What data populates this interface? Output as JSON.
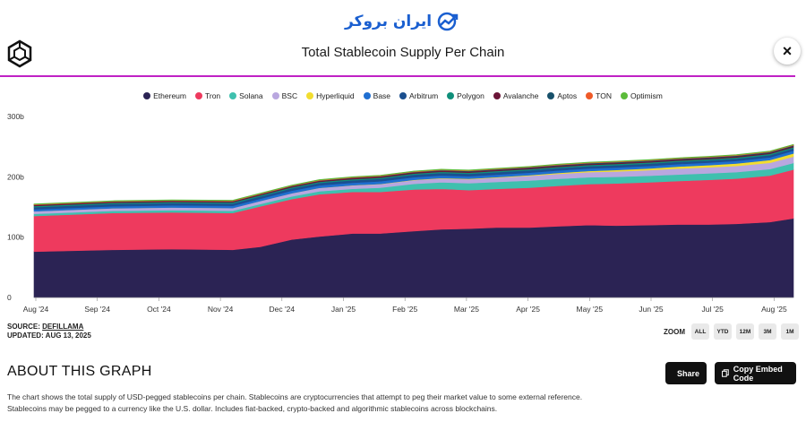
{
  "watermark": {
    "text": "ایران بروکر"
  },
  "header": {
    "title": "Total Stablecoin Supply Per Chain",
    "close_label": "×"
  },
  "source": {
    "label": "SOURCE:",
    "name": "DEFILLAMA",
    "updated": "UPDATED: AUG 13, 2025"
  },
  "zoom": {
    "label": "ZOOM",
    "options": [
      "ALL",
      "YTD",
      "12M",
      "3M",
      "1M"
    ]
  },
  "about": {
    "heading": "ABOUT THIS GRAPH",
    "line1": "The chart shows the total supply of USD-pegged stablecoins per chain. Stablecoins are cryptocurrencies that attempt to peg their market value to some external reference.",
    "line2": "Stablecoins may be pegged to a currency like the U.S. dollar. Includes fiat-backed, crypto-backed and algorithmic stablecoins across blockchains."
  },
  "buttons": {
    "share": "Share",
    "embed": "Copy Embed Code"
  },
  "colors": {
    "accent_rule": "#c021c5",
    "button_bg": "#111111",
    "watermark": "#1a5fd0"
  },
  "chart_data": {
    "type": "area",
    "stacked": true,
    "grid": false,
    "legend_position": "top-center",
    "title": "Total Stablecoin Supply Per Chain",
    "ylim": [
      0,
      300
    ],
    "y_ticks": [
      "0",
      "100b",
      "200b",
      "300b"
    ],
    "y_tick_values": [
      0,
      100,
      200,
      300
    ],
    "x_ticks": [
      "Aug '24",
      "Sep '24",
      "Oct '24",
      "Nov '24",
      "Dec '24",
      "Jan '25",
      "Feb '25",
      "Mar '25",
      "Apr '25",
      "May '25",
      "Jun '25",
      "Jul '25",
      "Aug '25"
    ],
    "x": [
      "2024-08-01",
      "2024-09-01",
      "2024-10-01",
      "2024-11-01",
      "2024-11-15",
      "2024-12-01",
      "2024-12-15",
      "2025-01-01",
      "2025-01-15",
      "2025-02-01",
      "2025-02-15",
      "2025-03-01",
      "2025-03-15",
      "2025-04-01",
      "2025-04-15",
      "2025-05-01",
      "2025-05-15",
      "2025-06-01",
      "2025-06-15",
      "2025-07-01",
      "2025-07-15",
      "2025-08-01",
      "2025-08-13"
    ],
    "series": [
      {
        "name": "Ethereum",
        "color": "#2b2354",
        "values": [
          76,
          79,
          80,
          79,
          84,
          96,
          101,
          106,
          106,
          110,
          113,
          114,
          116,
          116,
          118,
          120,
          119,
          120,
          121,
          121,
          122,
          125,
          131
        ]
      },
      {
        "name": "Tron",
        "color": "#ee3a5e",
        "values": [
          59,
          61,
          61,
          61,
          67,
          67,
          70,
          69,
          69,
          69,
          67,
          64,
          64,
          66,
          67,
          68,
          70,
          71,
          72,
          74,
          75,
          77,
          81
        ]
      },
      {
        "name": "Solana",
        "color": "#3fc0ae",
        "values": [
          3.5,
          3.5,
          3.6,
          3.7,
          3.9,
          4.5,
          5,
          5.1,
          7,
          9.4,
          11,
          11.4,
          11.5,
          11.8,
          11.6,
          11.2,
          11,
          10.8,
          10.8,
          10.8,
          10.9,
          10.8,
          10.9
        ]
      },
      {
        "name": "BSC",
        "color": "#b9a7df",
        "values": [
          4.3,
          4.4,
          4.5,
          4.6,
          5,
          5.2,
          5.4,
          5.6,
          5.8,
          6.1,
          6.3,
          6.6,
          7,
          7.8,
          8.3,
          8.6,
          9,
          9.4,
          9.8,
          10,
          10.2,
          10.4,
          10.6
        ]
      },
      {
        "name": "Hyperliquid",
        "color": "#f2dd2f",
        "values": [
          0,
          0,
          0,
          0,
          0,
          0.1,
          0.2,
          0.3,
          0.4,
          0.5,
          0.7,
          0.8,
          1,
          1.2,
          1.5,
          1.8,
          2.3,
          2.8,
          3.3,
          3.6,
          4,
          4.6,
          5.2
        ]
      },
      {
        "name": "Base",
        "color": "#1f6fd1",
        "values": [
          3.2,
          3.3,
          3.5,
          3.7,
          3.8,
          4.1,
          4.2,
          4.2,
          4.3,
          4.3,
          4.2,
          4.1,
          4.1,
          4.1,
          4.1,
          4.1,
          4.1,
          4.1,
          4.1,
          4.2,
          4.3,
          4.4,
          4.6
        ]
      },
      {
        "name": "Arbitrum",
        "color": "#1b4f8f",
        "values": [
          3.8,
          3.9,
          3.9,
          3.8,
          3.8,
          3.9,
          4,
          4.1,
          4.2,
          4.2,
          4.2,
          4.1,
          4.1,
          4,
          4,
          3.9,
          3.9,
          3.8,
          3.8,
          3.7,
          3.7,
          3.7,
          3.7
        ]
      },
      {
        "name": "Polygon",
        "color": "#0f8f7a",
        "values": [
          1.8,
          1.8,
          1.8,
          1.8,
          1.8,
          1.8,
          1.8,
          1.9,
          1.9,
          1.9,
          1.9,
          1.9,
          1.9,
          1.9,
          1.9,
          2,
          2,
          2,
          2,
          2,
          2,
          2.1,
          2.1
        ]
      },
      {
        "name": "Avalanche",
        "color": "#6b1537",
        "values": [
          1.6,
          1.6,
          1.6,
          1.6,
          1.6,
          1.7,
          1.7,
          1.8,
          1.8,
          1.8,
          1.8,
          1.8,
          1.8,
          1.8,
          1.8,
          1.8,
          1.8,
          1.8,
          1.8,
          1.8,
          1.8,
          1.8,
          1.8
        ]
      },
      {
        "name": "Aptos",
        "color": "#17506a",
        "values": [
          0.3,
          0.3,
          0.3,
          0.3,
          0.3,
          0.4,
          0.4,
          0.5,
          0.6,
          0.7,
          0.8,
          0.9,
          1,
          1.1,
          1.1,
          1.2,
          1.2,
          1.2,
          1.2,
          1.2,
          1.2,
          1.2,
          1.2
        ]
      },
      {
        "name": "TON",
        "color": "#ef5a28",
        "values": [
          0.8,
          0.8,
          0.8,
          0.9,
          0.9,
          0.9,
          0.9,
          0.9,
          0.9,
          0.9,
          0.9,
          0.9,
          0.9,
          0.9,
          0.9,
          0.9,
          0.9,
          0.9,
          0.9,
          0.9,
          0.9,
          0.9,
          0.9
        ]
      },
      {
        "name": "Optimism",
        "color": "#5cbc3a",
        "values": [
          0.8,
          0.8,
          0.8,
          0.8,
          0.8,
          0.8,
          0.8,
          0.8,
          0.8,
          0.8,
          0.8,
          0.8,
          0.8,
          0.8,
          0.8,
          0.8,
          0.8,
          0.8,
          0.8,
          0.8,
          0.8,
          0.8,
          0.8
        ]
      }
    ]
  }
}
